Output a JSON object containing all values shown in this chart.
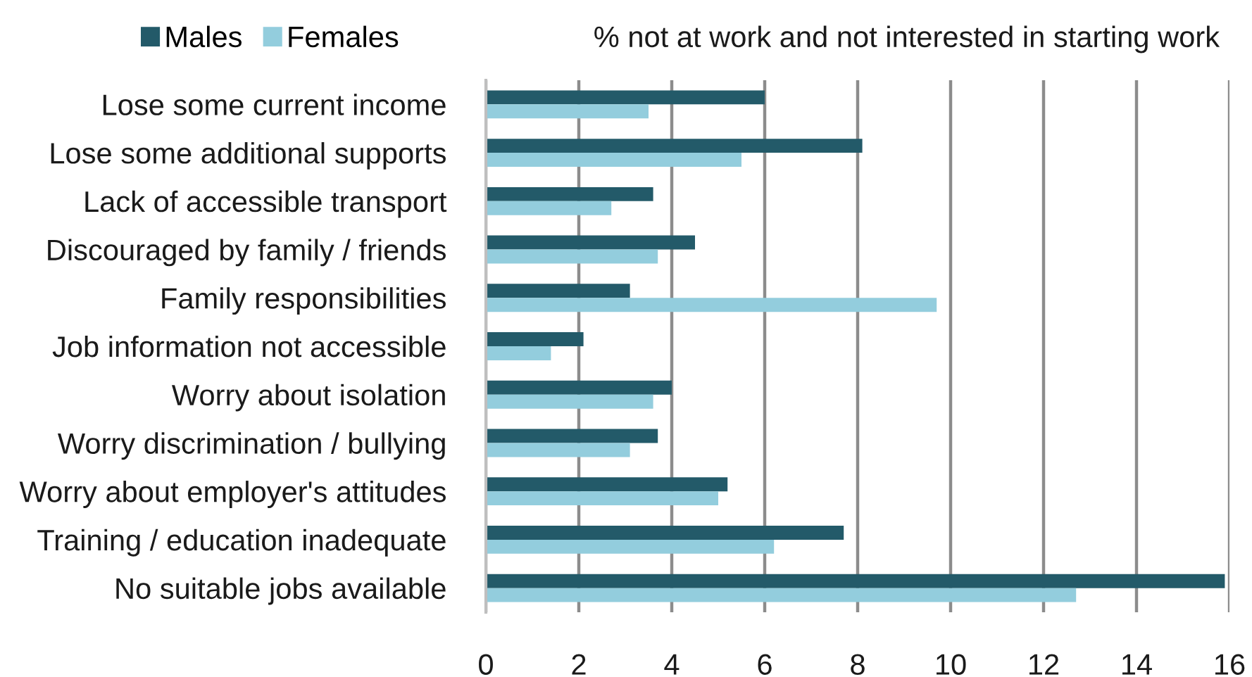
{
  "chart_data": {
    "type": "bar",
    "orientation": "horizontal",
    "title": "% not at work and not interested in starting work",
    "categories": [
      "Lose some current income",
      "Lose some additional supports",
      "Lack of accessible transport",
      "Discouraged by family / friends",
      "Family responsibilities",
      "Job information not accessible",
      "Worry about isolation",
      "Worry discrimination / bullying",
      "Worry about employer's attitudes",
      "Training / education inadequate",
      "No suitable jobs available"
    ],
    "series": [
      {
        "name": "Males",
        "color": "#235a69",
        "values": [
          6.0,
          8.1,
          3.6,
          4.5,
          3.1,
          2.1,
          4.0,
          3.7,
          5.2,
          7.7,
          15.9
        ]
      },
      {
        "name": "Females",
        "color": "#93cddd",
        "values": [
          3.5,
          5.5,
          2.7,
          3.7,
          9.7,
          1.4,
          3.6,
          3.1,
          5.0,
          6.2,
          12.7
        ]
      }
    ],
    "xlim": [
      0,
      16
    ],
    "xticks": [
      0,
      2,
      4,
      6,
      8,
      10,
      12,
      14,
      16
    ],
    "grid": "x",
    "legend": "top left"
  }
}
